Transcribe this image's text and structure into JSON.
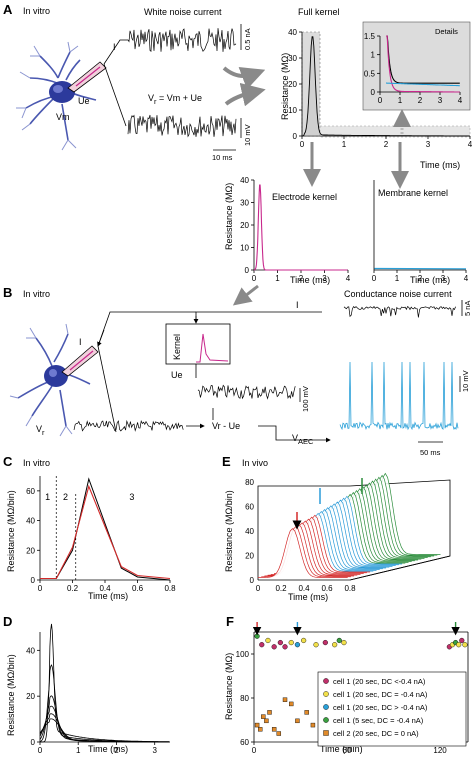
{
  "colors": {
    "magenta": "#c8288c",
    "cyan": "#2aa0d8",
    "red": "#d42a2a",
    "green": "#2a8c3a",
    "blue_arrow": "#2a9ad8",
    "neuron": "#2c3a9c",
    "grey_box": "#dcdcdc",
    "arrow_grey": "#8a8a8a"
  },
  "panelA": {
    "letter": "A",
    "in_vitro": "In vitro",
    "white_noise": "White noise current",
    "label_I": "I",
    "scale_na": "0.5 nA",
    "eq_vr": "V",
    "eq_vr_sub": "r",
    "eq_rest": " =  Vm +  Ue",
    "label_ue": "Ue",
    "label_vm": "Vm",
    "scale_mv": "10 mV",
    "scale_ms": "10 ms",
    "full_kernel": "Full kernel",
    "ylabel": "Resistance (MΩ)",
    "xlabel": "Time (ms)",
    "yticks": [
      "0",
      "10",
      "20",
      "30",
      "40"
    ],
    "xticks": [
      "0",
      "1",
      "2",
      "3",
      "4"
    ],
    "details": "Details",
    "inset_yticks": [
      "0",
      "0.5",
      "1",
      "1.5"
    ],
    "inset_xticks": [
      "0",
      "1",
      "2",
      "3",
      "4"
    ],
    "electrode_kernel": "Electrode kernel",
    "membrane_kernel": "Membrane kernel",
    "sub_yticks": [
      "0",
      "10",
      "20",
      "30",
      "40"
    ],
    "sub_xticks": [
      "0",
      "1",
      "2",
      "3",
      "4"
    ]
  },
  "panelB": {
    "letter": "B",
    "in_vitro": "In vitro",
    "label_I_top": "I",
    "label_I": "I",
    "kernel": "Kernel",
    "conductance_noise": "Conductance noise current",
    "scale_na": "5 nA",
    "label_ue": "Ue",
    "scale_100mv": "100 mV",
    "label_vr": "V",
    "label_vr_sub": "r",
    "minus": "Vr - Ue",
    "vaec": "V",
    "vaec_sub": "AEC",
    "scale_10mv": "10 mV",
    "scale_50ms": "50 ms"
  },
  "panelC": {
    "letter": "C",
    "in_vitro": "In vitro",
    "ylabel": "Resistance (MΩ/bin)",
    "xlabel": "Time (ms)",
    "yticks": [
      "0",
      "20",
      "40",
      "60"
    ],
    "xticks": [
      "0",
      "0.2",
      "0.4",
      "0.6",
      "0.8"
    ],
    "regions": [
      "1",
      "2",
      "3"
    ]
  },
  "panelE": {
    "letter": "E",
    "in_vivo": "In vivo",
    "ylabel": "Resistance (MΩ/bin)",
    "xlabel": "Time (ms)",
    "yticks": [
      "0",
      "20",
      "40",
      "60",
      "80"
    ],
    "xticks": [
      "0",
      "0.2",
      "0.4",
      "0.6",
      "0.8"
    ]
  },
  "panelD": {
    "letter": "D",
    "ylabel": "Resistance (MΩ/bin)",
    "xlabel": "Time (ms)",
    "yticks": [
      "0",
      "20",
      "40"
    ],
    "xticks": [
      "0",
      "1",
      "2",
      "3"
    ]
  },
  "panelF": {
    "letter": "F",
    "ylabel": "Resistance (MΩ)",
    "xlabel": "Time (min)",
    "yticks": [
      "60",
      "80",
      "100"
    ],
    "xticks": [
      "0",
      "60",
      "120"
    ],
    "legend": [
      {
        "label": "cell 1 (20 sec, DC <-0.4 nA)",
        "color": "#c0306a",
        "shape": "circle"
      },
      {
        "label": "cell 1 (20 sec, DC = -0.4 nA)",
        "color": "#f2e04a",
        "shape": "circle"
      },
      {
        "label": "cell 1 (20 sec, DC > -0.4 nA)",
        "color": "#2aa0d8",
        "shape": "circle"
      },
      {
        "label": "cell 1 (5 sec,  DC = -0.4 nA)",
        "color": "#3aa040",
        "shape": "circle"
      },
      {
        "label": "cell 2 (20 sec, DC = 0 nA)",
        "color": "#e08a2a",
        "shape": "square"
      }
    ]
  }
}
